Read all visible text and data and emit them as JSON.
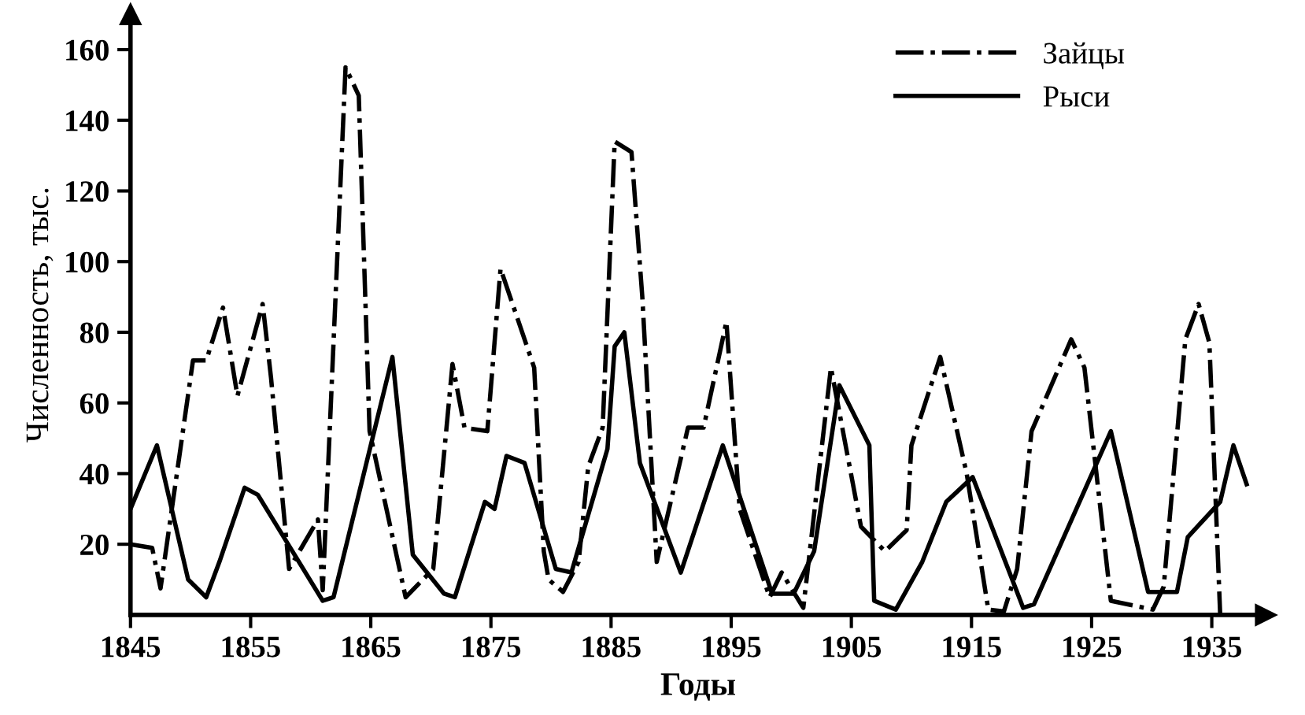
{
  "chart_data": {
    "type": "line",
    "xlabel": "Годы",
    "ylabel": "Численность, тыс.",
    "xlim": [
      1845,
      1939.5
    ],
    "ylim": [
      0,
      170
    ],
    "xticks": [
      1845,
      1855,
      1865,
      1875,
      1885,
      1895,
      1905,
      1915,
      1925,
      1935
    ],
    "yticks": [
      20,
      40,
      60,
      80,
      100,
      120,
      140,
      160
    ],
    "grid": false,
    "legend": "top right",
    "marker": "none",
    "series": [
      {
        "name": "Зайцы",
        "color": "#000000",
        "line_style": "dashdot",
        "x": [
          1845,
          1846.8,
          1847.5,
          1850.2,
          1851.3,
          1852.7,
          1853.9,
          1856,
          1856.7,
          1858.2,
          1860.6,
          1861,
          1862.9,
          1864,
          1864.9,
          1867.9,
          1870.2,
          1871.8,
          1872.8,
          1874.7,
          1875.8,
          1878.6,
          1879.4,
          1879.8,
          1881,
          1882.3,
          1883.1,
          1884.3,
          1885.3,
          1886.7,
          1887.6,
          1888.8,
          1891.4,
          1892.7,
          1894.6,
          1895.7,
          1898.2,
          1899.2,
          1901,
          1903.3,
          1905.8,
          1907.8,
          1909.6,
          1910,
          1912.4,
          1914.6,
          1916.4,
          1917.7,
          1918.8,
          1920,
          1923.3,
          1924.4,
          1926.6,
          1930.1,
          1931,
          1932.8,
          1933.9,
          1934.8,
          1935.7
        ],
        "values": [
          20,
          19,
          7.5,
          72,
          72,
          87,
          62,
          88,
          67,
          13,
          27,
          7,
          155,
          147,
          52,
          5,
          13,
          71,
          53,
          52,
          98,
          70,
          18,
          10,
          6.5,
          15,
          42,
          53,
          134,
          131,
          90,
          15,
          53,
          53,
          83,
          30,
          5,
          12,
          2,
          70,
          25,
          18,
          24,
          48,
          73,
          40,
          1.5,
          1,
          13,
          52,
          78,
          70,
          4,
          1.5,
          8,
          78,
          88,
          77,
          0
        ]
      },
      {
        "name": "Рыси",
        "color": "#000000",
        "line_style": "solid",
        "x": [
          1845,
          1847.2,
          1849.8,
          1851.3,
          1852.4,
          1854.5,
          1855.6,
          1861,
          1861.9,
          1866.8,
          1868.5,
          1871.1,
          1872,
          1874.5,
          1875.3,
          1876.3,
          1877.8,
          1880.4,
          1881.7,
          1884.7,
          1885.3,
          1886.1,
          1887.4,
          1890.8,
          1894.3,
          1898.4,
          1900.2,
          1901.9,
          1904,
          1906.5,
          1906.9,
          1908.7,
          1910.9,
          1912.9,
          1915.1,
          1919.3,
          1920.2,
          1926.6,
          1929.7,
          1932.1,
          1933,
          1935.7,
          1936.8,
          1937.9
        ],
        "values": [
          30,
          48,
          10,
          5,
          15,
          36,
          34,
          4,
          5,
          73,
          17,
          6,
          5,
          32,
          30,
          45,
          43,
          13,
          12,
          47,
          76,
          80,
          43,
          12,
          48,
          6,
          6,
          18,
          65,
          48,
          4,
          1.5,
          15,
          32,
          39,
          2,
          3,
          52,
          6.5,
          6.5,
          22,
          32,
          48,
          37
        ]
      }
    ]
  }
}
